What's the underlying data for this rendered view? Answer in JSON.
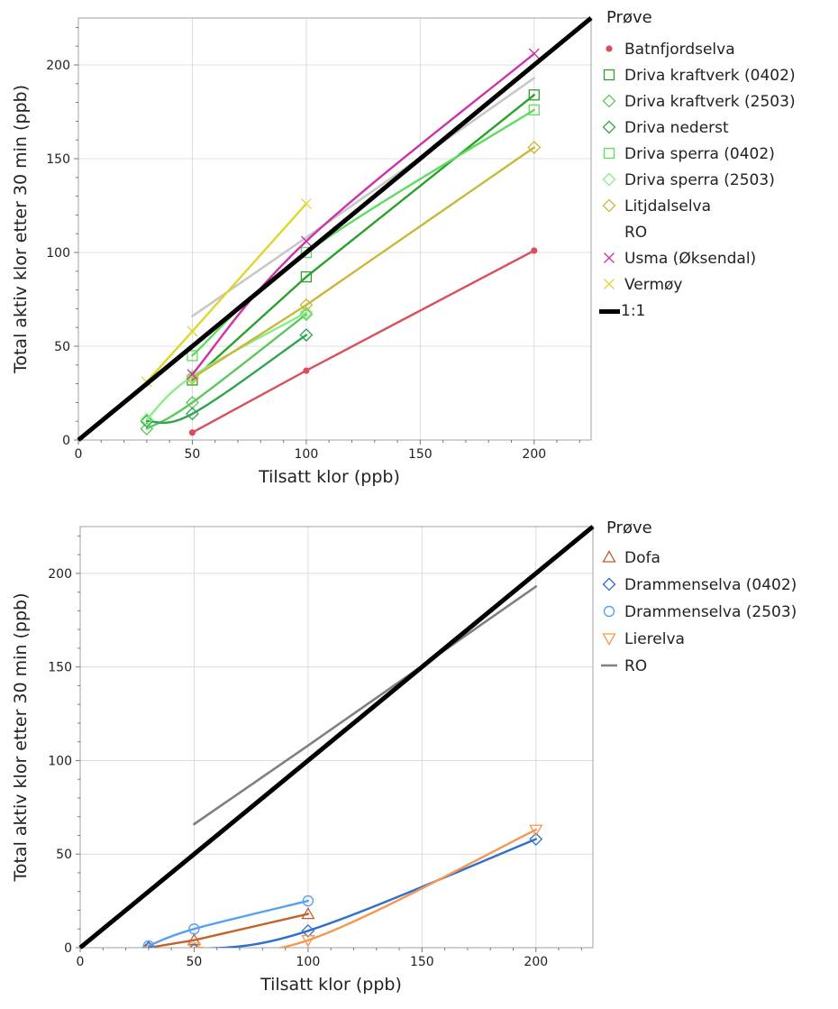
{
  "chart_data": [
    {
      "type": "line",
      "xlabel": "Tilsatt klor (ppb)",
      "ylabel": "Total aktiv klor etter 30 min (ppb)",
      "xlim": [
        0,
        225
      ],
      "ylim": [
        0,
        225
      ],
      "x_ticks": [
        0,
        50,
        100,
        150,
        200
      ],
      "y_ticks": [
        0,
        50,
        100,
        150,
        200
      ],
      "grid": true,
      "legend": {
        "title": "Prøve",
        "placement": "right"
      },
      "series": [
        {
          "name": "Batnfjordselva",
          "color": "#d94f5c",
          "marker": "dot",
          "points": [
            [
              50,
              4
            ],
            [
              100,
              37
            ],
            [
              200,
              101
            ]
          ],
          "curve": "line"
        },
        {
          "name": "Driva kraftverk (0402)",
          "color": "#2ca02c",
          "marker": "square",
          "points": [
            [
              50,
              32
            ],
            [
              100,
              87
            ],
            [
              200,
              184
            ]
          ],
          "curve": "line"
        },
        {
          "name": "Driva kraftverk (2503)",
          "color": "#5cc85c",
          "marker": "diamond",
          "points": [
            [
              30,
              6
            ],
            [
              50,
              20
            ],
            [
              100,
              67
            ]
          ],
          "curve": "smooth"
        },
        {
          "name": "Driva nederst",
          "color": "#2fa44f",
          "marker": "diamond",
          "points": [
            [
              30,
              10
            ],
            [
              50,
              14
            ],
            [
              100,
              56
            ]
          ],
          "curve": "smooth"
        },
        {
          "name": "Driva sperra (0402)",
          "color": "#5ddc5d",
          "marker": "square",
          "points": [
            [
              50,
              45
            ],
            [
              100,
              100
            ],
            [
              200,
              176
            ]
          ],
          "curve": "smooth"
        },
        {
          "name": "Driva sperra (2503)",
          "color": "#88ee88",
          "marker": "diamond",
          "points": [
            [
              30,
              11
            ],
            [
              50,
              34
            ],
            [
              100,
              68
            ]
          ],
          "curve": "smooth"
        },
        {
          "name": "Litjdalselva",
          "color": "#c9b83c",
          "marker": "diamond",
          "points": [
            [
              50,
              33
            ],
            [
              100,
              72
            ],
            [
              200,
              156
            ]
          ],
          "curve": "line"
        },
        {
          "name": "RO",
          "color": "#c8c8c8",
          "marker": "none",
          "points": [
            [
              50,
              66
            ],
            [
              100,
              108
            ],
            [
              200,
              193
            ]
          ],
          "curve": "line"
        },
        {
          "name": "Usma (Øksendal)",
          "color": "#cc33aa",
          "marker": "x",
          "points": [
            [
              50,
              35
            ],
            [
              100,
              106
            ],
            [
              200,
              206
            ]
          ],
          "curve": "smooth"
        },
        {
          "name": "Vermøy",
          "color": "#e0d62a",
          "marker": "x",
          "points": [
            [
              30,
              31
            ],
            [
              50,
              58
            ],
            [
              100,
              126
            ]
          ],
          "curve": "line"
        },
        {
          "name": "1:1",
          "color": "#000000",
          "marker": "none",
          "points": [
            [
              0,
              0
            ],
            [
              225,
              225
            ]
          ],
          "curve": "line"
        }
      ]
    },
    {
      "type": "line",
      "xlabel": "Tilsatt klor (ppb)",
      "ylabel": "Total aktiv klor etter 30 min (ppb)",
      "xlim": [
        0,
        225
      ],
      "ylim": [
        0,
        225
      ],
      "x_ticks": [
        0,
        50,
        100,
        150,
        200
      ],
      "y_ticks": [
        0,
        50,
        100,
        150,
        200
      ],
      "grid": true,
      "legend": {
        "title": "Prøve",
        "placement": "right"
      },
      "series": [
        {
          "name": "Dofa",
          "color": "#c0622a",
          "marker": "triangle",
          "points": [
            [
              30,
              0
            ],
            [
              50,
              4
            ],
            [
              100,
              18
            ]
          ],
          "curve": "line"
        },
        {
          "name": "Drammenselva (0402)",
          "color": "#2f6fcf",
          "marker": "diamond",
          "points": [
            [
              30,
              0
            ],
            [
              50,
              -1
            ],
            [
              100,
              9
            ],
            [
              200,
              58
            ]
          ],
          "curve": "smooth"
        },
        {
          "name": "Drammenselva (2503)",
          "color": "#5aa0f0",
          "marker": "circle",
          "points": [
            [
              30,
              1
            ],
            [
              50,
              10
            ],
            [
              100,
              25
            ]
          ],
          "curve": "smooth"
        },
        {
          "name": "Lierelva",
          "color": "#f5974e",
          "marker": "triangle-down",
          "points": [
            [
              50,
              0
            ],
            [
              100,
              4
            ],
            [
              200,
              63
            ]
          ],
          "curve": "smooth"
        },
        {
          "name": "RO",
          "color": "#808080",
          "marker": "none",
          "points": [
            [
              50,
              66
            ],
            [
              100,
              108
            ],
            [
              200,
              193
            ]
          ],
          "curve": "line",
          "legend_style": "line"
        },
        {
          "name": "1:1",
          "color": "#000000",
          "marker": "none",
          "points": [
            [
              0,
              0
            ],
            [
              225,
              225
            ]
          ],
          "curve": "line",
          "in_legend": false
        }
      ]
    }
  ]
}
